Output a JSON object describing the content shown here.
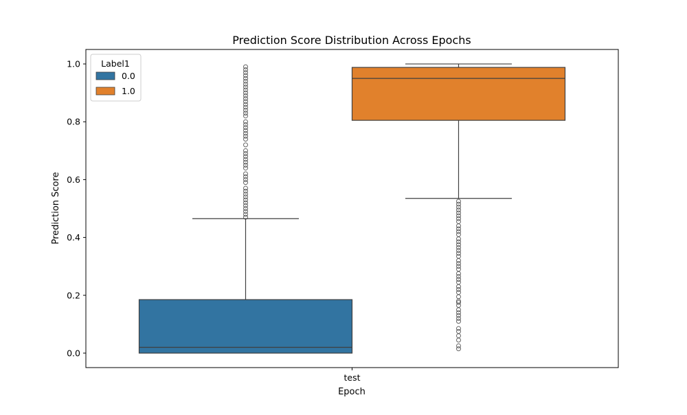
{
  "chart_data": {
    "type": "boxplot",
    "title": "Prediction Score Distribution Across Epochs",
    "xlabel": "Epoch",
    "ylabel": "Prediction Score",
    "categories": [
      "test"
    ],
    "ylim": [
      -0.05,
      1.05
    ],
    "yticks": [
      "0.0",
      "0.2",
      "0.4",
      "0.6",
      "0.8",
      "1.0"
    ],
    "grid": false,
    "legend": {
      "title": "Label1",
      "placement": "top-left"
    },
    "series": [
      {
        "name": "0.0",
        "color": "#3274a1",
        "box": {
          "whisker_low": 0.0,
          "q1": 0.0,
          "median": 0.02,
          "q3": 0.185,
          "whisker_high": 0.465
        },
        "outliers": [
          0.47,
          0.48,
          0.49,
          0.5,
          0.51,
          0.52,
          0.53,
          0.54,
          0.55,
          0.56,
          0.57,
          0.59,
          0.6,
          0.61,
          0.62,
          0.64,
          0.65,
          0.66,
          0.67,
          0.68,
          0.69,
          0.7,
          0.72,
          0.74,
          0.75,
          0.76,
          0.77,
          0.78,
          0.79,
          0.8,
          0.82,
          0.83,
          0.84,
          0.85,
          0.86,
          0.87,
          0.88,
          0.89,
          0.9,
          0.91,
          0.92,
          0.93,
          0.94,
          0.95,
          0.96,
          0.97,
          0.98,
          0.99
        ]
      },
      {
        "name": "1.0",
        "color": "#e1812c",
        "box": {
          "whisker_low": 0.535,
          "q1": 0.805,
          "median": 0.95,
          "q3": 0.988,
          "whisker_high": 1.0
        },
        "outliers": [
          0.015,
          0.025,
          0.045,
          0.06,
          0.075,
          0.085,
          0.11,
          0.12,
          0.13,
          0.14,
          0.15,
          0.165,
          0.175,
          0.18,
          0.195,
          0.21,
          0.22,
          0.23,
          0.245,
          0.255,
          0.265,
          0.275,
          0.29,
          0.3,
          0.31,
          0.32,
          0.335,
          0.345,
          0.355,
          0.365,
          0.375,
          0.385,
          0.395,
          0.41,
          0.42,
          0.43,
          0.44,
          0.455,
          0.465,
          0.475,
          0.485,
          0.495,
          0.505,
          0.515,
          0.525
        ]
      }
    ]
  }
}
